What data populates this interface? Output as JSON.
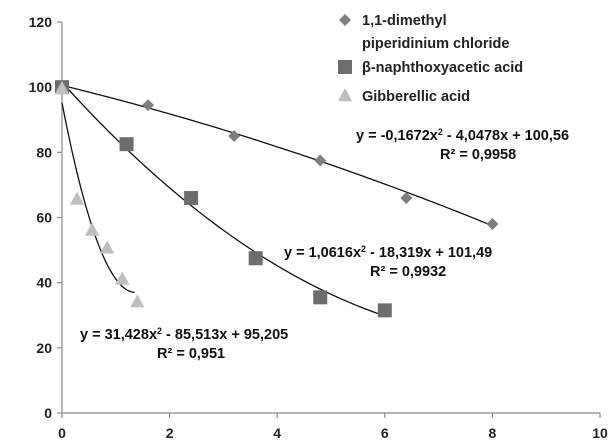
{
  "chart_data": {
    "type": "scatter",
    "title": "",
    "xlabel": "",
    "ylabel": "",
    "xlim": [
      0,
      10
    ],
    "ylim": [
      0,
      120
    ],
    "x_ticks": [
      "0",
      "2",
      "4",
      "6",
      "8",
      "10"
    ],
    "y_ticks": [
      "0",
      "20",
      "40",
      "60",
      "80",
      "100",
      "120"
    ],
    "x_tick_values": [
      0,
      2,
      4,
      6,
      8,
      10
    ],
    "y_tick_values": [
      0,
      20,
      40,
      60,
      80,
      100,
      120
    ],
    "grid": false,
    "legend_position": "top-right",
    "series": [
      {
        "name": "1,1-dimethyl piperidinium chloride",
        "legend_lines": [
          "1,1-dimethyl",
          "piperidinium chloride"
        ],
        "marker": "diamond",
        "color": "#7f7f7f",
        "x": [
          0,
          1.6,
          3.2,
          4.8,
          6.4,
          8.0
        ],
        "y": [
          100,
          94.5,
          85,
          77.5,
          66,
          58
        ],
        "trendline": {
          "a": -0.1672,
          "b": -4.0478,
          "c": 100.56,
          "x_range": [
            0,
            8
          ]
        },
        "equation": "y = -0,1672x",
        "equation_tail": " - 4,0478x + 100,56",
        "r2": "R² = 0,9958"
      },
      {
        "name": "β-naphthoxyacetic acid",
        "legend_lines": [
          "β-naphthoxyacetic acid"
        ],
        "marker": "square",
        "color": "#6d6d6d",
        "x": [
          0,
          1.2,
          2.4,
          3.6,
          4.8,
          6.0
        ],
        "y": [
          100,
          82.5,
          66,
          47.5,
          35.5,
          31.5
        ],
        "trendline": {
          "a": 1.0616,
          "b": -18.319,
          "c": 101.49,
          "x_range": [
            0,
            6
          ]
        },
        "equation": "y = 1,0616x",
        "equation_tail": " - 18,319x + 101,49",
        "r2": "R² = 0,9932"
      },
      {
        "name": "Gibberellic acid",
        "legend_lines": [
          "Gibberellic acid"
        ],
        "marker": "triangle",
        "color": "#bfbfbf",
        "x": [
          0,
          0.28,
          0.56,
          0.84,
          1.12,
          1.4
        ],
        "y": [
          99.5,
          65.5,
          56,
          50.5,
          41,
          34
        ],
        "trendline": {
          "a": 31.428,
          "b": -85.513,
          "c": 95.205,
          "x_range": [
            0,
            1.35
          ]
        },
        "equation": "y = 31,428x",
        "equation_tail": " - 85,513x + 95,205",
        "r2": "R² = 0,951"
      }
    ]
  }
}
